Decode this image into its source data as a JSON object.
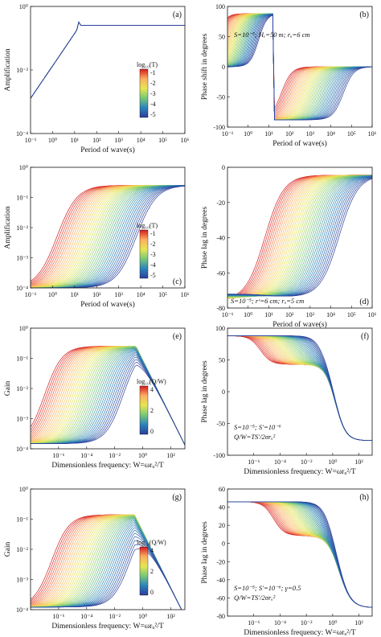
{
  "figure": {
    "panels": [
      {
        "id": "a",
        "type": "line",
        "panel_label": "(a)",
        "xlabel": "Period of wave(s)",
        "ylabel": "Amplification",
        "x_scale": "log",
        "y_scale": "log",
        "xlim": [
          0.1,
          1000000
        ],
        "ylim": [
          0.0001,
          5
        ],
        "x_ticks": [
          "10⁻¹",
          "10⁰",
          "10¹",
          "10²",
          "10³",
          "10⁴",
          "10⁵",
          "10⁶"
        ],
        "y_ticks": [
          "10⁰",
          "10⁻²",
          "10⁻⁴"
        ],
        "colorbar": {
          "title": "log₁₀(T)",
          "ticks": [
            "-1",
            "-2",
            "-3",
            "-4",
            "-5"
          ]
        }
      },
      {
        "id": "b",
        "type": "line",
        "panel_label": "(b)",
        "xlabel": "Period of wave(s)",
        "ylabel": "Phase shift in degrees",
        "x_scale": "log",
        "xlim": [
          0.1,
          1000000
        ],
        "ylim": [
          -100,
          100
        ],
        "x_ticks": [
          "10⁻¹",
          "10⁰",
          "10¹",
          "10²",
          "10³",
          "10⁴",
          "10⁵",
          "10⁶"
        ],
        "y_ticks": [
          "100",
          "50",
          "0",
          "-50",
          "-100"
        ],
        "annotation": "S=10⁻⁵; Hₑ=50 m; rᵤ=6 cm"
      },
      {
        "id": "c",
        "type": "line",
        "panel_label": "(c)",
        "xlabel": "Period of wave(s)",
        "ylabel": "Amplification",
        "x_scale": "log",
        "y_scale": "log",
        "xlim": [
          0.1,
          1000000
        ],
        "ylim": [
          0.0001,
          5
        ],
        "x_ticks": [
          "10⁻¹",
          "10⁰",
          "10¹",
          "10²",
          "10³",
          "10⁴",
          "10⁵",
          "10⁶"
        ],
        "y_ticks": [
          "10⁰",
          "10⁻¹",
          "10⁻²",
          "10⁻³",
          "10⁻⁴"
        ],
        "colorbar": {
          "title": "log₁₀(T)",
          "ticks": [
            "-1",
            "-2",
            "-3",
            "-4",
            "-5"
          ]
        }
      },
      {
        "id": "d",
        "type": "line",
        "panel_label": "(d)",
        "xlabel": "Period of wave(s)",
        "ylabel": "Phase lag in degrees",
        "x_scale": "log",
        "xlim": [
          0.1,
          1000000
        ],
        "ylim": [
          -85,
          5
        ],
        "x_ticks": [
          "10⁻¹",
          "10⁰",
          "10¹",
          "10²",
          "10³",
          "10⁴",
          "10⁵",
          "10⁶"
        ],
        "y_ticks": [
          "0",
          "-20",
          "-40",
          "-60",
          "-80"
        ],
        "annotation": "S=10⁻⁵; rᶜ=6 cm; rᵤ=5 cm"
      },
      {
        "id": "e",
        "type": "line",
        "panel_label": "(e)",
        "xlabel": "Dimensionless frequency: W=ωrᵤ²/T",
        "ylabel": "Gain",
        "x_scale": "log",
        "y_scale": "log",
        "xlim": [
          1e-08,
          1000
        ],
        "ylim": [
          0.0001,
          5
        ],
        "x_ticks": [
          "10⁻⁶",
          "10⁻⁴",
          "10⁻²",
          "10⁰",
          "10²"
        ],
        "y_ticks": [
          "10⁰",
          "10⁻¹",
          "10⁻²",
          "10⁻³",
          "10⁻⁴"
        ],
        "colorbar": {
          "title": "log₁₀(Q/W)",
          "ticks": [
            "4",
            "2",
            "0"
          ]
        }
      },
      {
        "id": "f",
        "type": "line",
        "panel_label": "(f)",
        "xlabel": "Dimensionless frequency: W=ωrᵤ²/T",
        "ylabel": "Phase lag in degrees",
        "x_scale": "log",
        "xlim": [
          1e-08,
          1000
        ],
        "ylim": [
          -100,
          100
        ],
        "x_ticks": [
          "10⁻⁶",
          "10⁻⁴",
          "10⁻²",
          "10⁰",
          "10²"
        ],
        "y_ticks": [
          "100",
          "50",
          "0",
          "-50",
          "-100"
        ],
        "annotation": "S=10⁻⁵; S′=10⁻⁶",
        "annotation2": "Q/W=TS′/2σrᵤ²"
      },
      {
        "id": "g",
        "type": "line",
        "panel_label": "(g)",
        "xlabel": "Dimensionless frequency: W=ωrᵤ²/T",
        "ylabel": "Gain",
        "x_scale": "log",
        "y_scale": "log",
        "xlim": [
          1e-08,
          1000
        ],
        "ylim": [
          0.0001,
          5
        ],
        "x_ticks": [
          "10⁻⁶",
          "10⁻⁴",
          "10⁻²",
          "10⁰",
          "10²"
        ],
        "y_ticks": [
          "10⁰",
          "10⁻¹",
          "10⁻²",
          "10⁻³",
          "10⁻⁴"
        ],
        "colorbar": {
          "title": "log₁₀(Q/W)",
          "ticks": [
            "4",
            "2",
            "0"
          ]
        }
      },
      {
        "id": "h",
        "type": "line",
        "panel_label": "(h)",
        "xlabel": "Dimensionless frequency: W=ωrᵤ²/T",
        "ylabel": "Phase lag in degrees",
        "x_scale": "log",
        "xlim": [
          1e-08,
          1000
        ],
        "ylim": [
          -90,
          60
        ],
        "x_ticks": [
          "10⁻⁶",
          "10⁻⁴",
          "10⁻²",
          "10⁰",
          "10²"
        ],
        "y_ticks": [
          "60",
          "40",
          "20",
          "0",
          "-20",
          "-40",
          "-60",
          "-80"
        ],
        "annotation": "S=10⁻⁵; S′=10⁻⁶; γ=0.5",
        "annotation2": "Q/W=TS′/2σrᵤ²"
      }
    ]
  },
  "chart_data": [
    {
      "type": "line",
      "panel": "a",
      "xlabel": "Period of wave(s)",
      "ylabel": "Amplification",
      "colorbar_title": "log₁₀(T)",
      "curve_count": 40,
      "series_param_range": [
        -1,
        -5
      ],
      "description_points": [
        {
          "x": 0.1,
          "y": 0.0001
        },
        {
          "x": 15,
          "y": 1.6
        },
        {
          "x": 100,
          "y": 1
        },
        {
          "x": 1000000,
          "y": 1
        }
      ]
    },
    {
      "type": "line",
      "panel": "b",
      "xlabel": "Period of wave(s)",
      "ylabel": "Phase shift in degrees",
      "curve_count": 40,
      "ylim": [
        -100,
        100
      ],
      "description_points": [
        {
          "x": 0.1,
          "y": 88
        },
        {
          "x": 15,
          "y": 0
        },
        {
          "x": 20,
          "y": -88
        },
        {
          "x": 1000000,
          "y": 0
        }
      ]
    },
    {
      "type": "line",
      "panel": "c",
      "xlabel": "Period of wave(s)",
      "ylabel": "Amplification",
      "colorbar_title": "log₁₀(T)",
      "curve_count": 40,
      "series_param_range": [
        -1,
        -5
      ],
      "description_points": [
        {
          "x": 0.1,
          "y": 0.0001
        },
        {
          "x": 10000,
          "y": 1
        },
        {
          "x": 1000000,
          "y": 1
        }
      ]
    },
    {
      "type": "line",
      "panel": "d",
      "xlabel": "Period of wave(s)",
      "ylabel": "Phase lag in degrees",
      "curve_count": 40,
      "ylim": [
        -85,
        5
      ],
      "description_points": [
        {
          "x": 0.1,
          "y": -75
        },
        {
          "x": 1000,
          "y": -40
        },
        {
          "x": 1000000,
          "y": 0
        }
      ]
    },
    {
      "type": "line",
      "panel": "e",
      "xlabel": "Dimensionless frequency: W=ωrᵤ²/T",
      "ylabel": "Gain",
      "colorbar_title": "log₁₀(Q/W)",
      "curve_count": 40,
      "series_param_range": [
        4,
        -1
      ],
      "description_points": [
        {
          "x": 1e-08,
          "y": 0.001
        },
        {
          "x": 0.1,
          "y": 1
        },
        {
          "x": 1000,
          "y": 0.0001
        }
      ]
    },
    {
      "type": "line",
      "panel": "f",
      "xlabel": "Dimensionless frequency: W=ωrᵤ²/T",
      "ylabel": "Phase lag in degrees",
      "curve_count": 40,
      "ylim": [
        -100,
        100
      ],
      "description_points": [
        {
          "x": 1e-08,
          "y": 88
        },
        {
          "x": 1,
          "y": 0
        },
        {
          "x": 1000,
          "y": -75
        }
      ]
    },
    {
      "type": "line",
      "panel": "g",
      "xlabel": "Dimensionless frequency: W=ωrᵤ²/T",
      "ylabel": "Gain",
      "colorbar_title": "log₁₀(Q/W)",
      "curve_count": 40,
      "series_param_range": [
        4,
        -1
      ],
      "description_points": [
        {
          "x": 1e-08,
          "y": 0.0003
        },
        {
          "x": 0.1,
          "y": 0.5
        },
        {
          "x": 1000,
          "y": 0.0001
        }
      ]
    },
    {
      "type": "line",
      "panel": "h",
      "xlabel": "Dimensionless frequency: W=ωrᵤ²/T",
      "ylabel": "Phase lag in degrees",
      "curve_count": 40,
      "ylim": [
        -90,
        60
      ],
      "description_points": [
        {
          "x": 1e-08,
          "y": 45
        },
        {
          "x": 1,
          "y": -40
        },
        {
          "x": 1000,
          "y": -80
        }
      ]
    }
  ],
  "colors": {
    "axis": "#111111",
    "curve_start": "#d7191c",
    "curve_end": "#2c3d9a"
  }
}
